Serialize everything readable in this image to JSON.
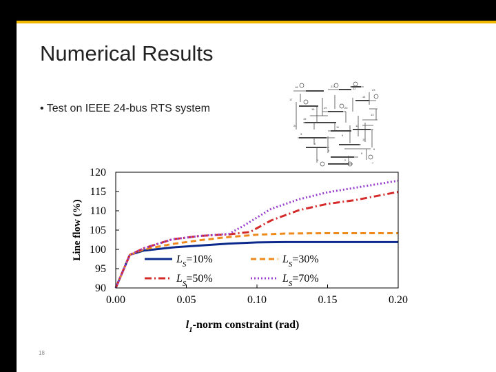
{
  "slide": {
    "title": "Numerical Results",
    "bullet": "• Test on IEEE 24-bus RTS system",
    "page_number": "18"
  },
  "diagram": {
    "bus_labels": [
      "18",
      "21",
      "22",
      "17",
      "16",
      "19",
      "20",
      "23",
      "24",
      "15",
      "14",
      "13",
      "11",
      "12",
      "3",
      "9",
      "10",
      "6",
      "4",
      "5",
      "8",
      "2",
      "1",
      "7"
    ]
  },
  "chart_data": {
    "type": "line",
    "title": "",
    "xlabel_main": "l",
    "xlabel_sub": "1",
    "xlabel_rest": "-norm constraint (rad)",
    "ylabel": "Line flow (%)",
    "xlim": [
      0,
      0.2
    ],
    "ylim": [
      90,
      120
    ],
    "x_ticks": [
      "0.00",
      "0.05",
      "0.10",
      "0.15",
      "0.20"
    ],
    "x_tick_values": [
      0,
      0.05,
      0.1,
      0.15,
      0.2
    ],
    "y_ticks": [
      "90",
      "95",
      "100",
      "105",
      "110",
      "115",
      "120"
    ],
    "y_tick_values": [
      90,
      95,
      100,
      105,
      110,
      115,
      120
    ],
    "legend_position": "bottom-center",
    "series": [
      {
        "name_prefix": "L",
        "name_sub": "S",
        "name_suffix": "=10%",
        "color": "#0b2a8c",
        "dash": "solid",
        "x": [
          0,
          0.01,
          0.02,
          0.04,
          0.06,
          0.08,
          0.1,
          0.12,
          0.15,
          0.2
        ],
        "y": [
          90,
          98.6,
          99.7,
          100.5,
          101.0,
          101.5,
          101.8,
          101.9,
          101.9,
          101.9
        ]
      },
      {
        "name_prefix": "L",
        "name_sub": "S",
        "name_suffix": "=30%",
        "color": "#ee8a1c",
        "dash": "dash",
        "x": [
          0,
          0.01,
          0.02,
          0.04,
          0.06,
          0.08,
          0.1,
          0.12,
          0.15,
          0.2
        ],
        "y": [
          90,
          98.6,
          100.0,
          101.4,
          102.4,
          103.2,
          103.8,
          104.1,
          104.2,
          104.2
        ]
      },
      {
        "name_prefix": "L",
        "name_sub": "S",
        "name_suffix": "=50%",
        "color": "#d42a2a",
        "dash": "dashdot",
        "x": [
          0,
          0.01,
          0.02,
          0.04,
          0.06,
          0.08,
          0.095,
          0.11,
          0.13,
          0.15,
          0.17,
          0.2
        ],
        "y": [
          90,
          98.6,
          100.3,
          102.6,
          103.5,
          103.9,
          104.5,
          107.5,
          110.2,
          111.8,
          112.8,
          114.9
        ]
      },
      {
        "name_prefix": "L",
        "name_sub": "S",
        "name_suffix": "=70%",
        "color": "#9a3fd0",
        "dash": "dot",
        "x": [
          0,
          0.01,
          0.02,
          0.04,
          0.06,
          0.08,
          0.09,
          0.11,
          0.13,
          0.15,
          0.17,
          0.2
        ],
        "y": [
          90,
          98.6,
          100.3,
          102.6,
          103.5,
          104.0,
          106.0,
          110.5,
          113.0,
          114.8,
          116.0,
          117.8
        ]
      }
    ]
  }
}
